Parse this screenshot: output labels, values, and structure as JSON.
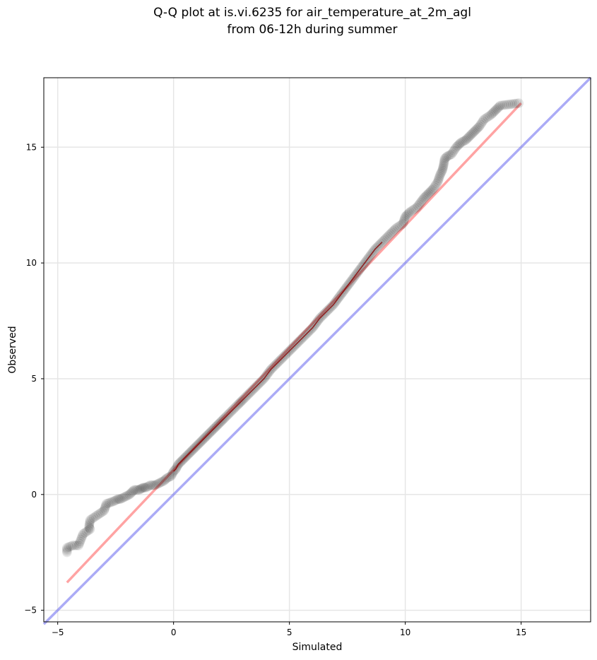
{
  "chart_data": {
    "type": "scatter",
    "title_lines": [
      "Q-Q plot at is.vi.6235 for air_temperature_at_2m_agl",
      "from 06-12h during summer"
    ],
    "xlabel": "Simulated",
    "ylabel": "Observed",
    "xlim": [
      -5.6,
      18.0
    ],
    "ylim": [
      -5.5,
      18.0
    ],
    "xticks": [
      -5,
      0,
      5,
      10,
      15
    ],
    "yticks": [
      -5,
      0,
      5,
      10,
      15
    ],
    "grid": true,
    "colors": {
      "points": "#000000",
      "fit_line": "#ff6666",
      "identity_line": "#6666ee",
      "core_line": "#8b0000"
    },
    "identity_line": {
      "x": [
        -5.6,
        18.0
      ],
      "y": [
        -5.6,
        18.0
      ]
    },
    "fit_line": {
      "x": [
        -4.6,
        15.0
      ],
      "y": [
        -3.8,
        16.9
      ]
    },
    "quantiles": {
      "x": [
        -4.6,
        -4.6,
        -4.35,
        -4.1,
        -3.9,
        -3.6,
        -3.65,
        -3.6,
        -3.0,
        -2.9,
        -2.6,
        -2.4,
        -2.3,
        -2.1,
        -1.9,
        -1.8,
        -1.7,
        -1.5,
        -1.4,
        -1.3,
        -1.2,
        -1.0,
        -0.8,
        -0.6,
        -0.4,
        -0.3,
        -0.1,
        0.0,
        0.1,
        0.2,
        0.3,
        0.5,
        0.6,
        0.8,
        1.0,
        1.2,
        1.4,
        1.6,
        1.8,
        2.0,
        2.2,
        2.5,
        2.8,
        3.0,
        3.3,
        3.6,
        3.9,
        4.2,
        4.5,
        4.8,
        5.1,
        5.4,
        5.7,
        6.0,
        6.3,
        6.6,
        6.9,
        7.2,
        7.5,
        7.8,
        8.1,
        8.4,
        8.7,
        9.0,
        9.3,
        9.6,
        9.9,
        10.0,
        10.2,
        10.5,
        10.8,
        11.0,
        11.2,
        11.4,
        11.5,
        11.6,
        11.65,
        11.7,
        11.8,
        12.0,
        12.2,
        12.4,
        12.6,
        12.8,
        13.0,
        13.2,
        13.4,
        13.7,
        13.9,
        14.1,
        14.9
      ],
      "y": [
        -2.5,
        -2.3,
        -2.2,
        -2.2,
        -1.7,
        -1.5,
        -1.4,
        -1.1,
        -0.7,
        -0.4,
        -0.3,
        -0.2,
        -0.2,
        -0.1,
        0.0,
        0.1,
        0.2,
        0.2,
        0.25,
        0.3,
        0.3,
        0.4,
        0.4,
        0.5,
        0.6,
        0.7,
        0.8,
        1.0,
        1.1,
        1.3,
        1.4,
        1.6,
        1.7,
        1.9,
        2.1,
        2.3,
        2.5,
        2.7,
        2.9,
        3.1,
        3.3,
        3.6,
        3.9,
        4.1,
        4.4,
        4.7,
        5.0,
        5.4,
        5.7,
        6.0,
        6.3,
        6.6,
        6.9,
        7.2,
        7.6,
        7.9,
        8.2,
        8.6,
        9.0,
        9.4,
        9.8,
        10.2,
        10.6,
        10.9,
        11.2,
        11.5,
        11.7,
        12.0,
        12.2,
        12.4,
        12.8,
        13.0,
        13.2,
        13.5,
        13.8,
        14.0,
        14.2,
        14.5,
        14.6,
        14.7,
        15.0,
        15.2,
        15.3,
        15.5,
        15.7,
        15.9,
        16.2,
        16.4,
        16.6,
        16.8,
        16.9
      ]
    }
  }
}
